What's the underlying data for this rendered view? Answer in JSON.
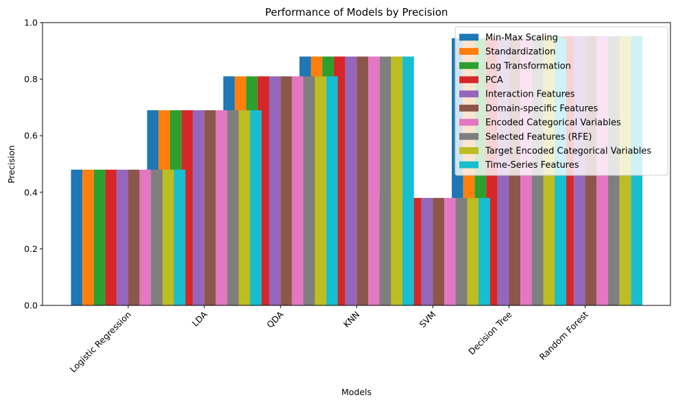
{
  "chart_data": {
    "type": "bar",
    "title": "Performance of Models by Precision",
    "xlabel": "Models",
    "ylabel": "Precision",
    "ylim": [
      0,
      1.0
    ],
    "yticks": [
      "0.0",
      "0.2",
      "0.4",
      "0.6",
      "0.8",
      "1.0"
    ],
    "categories": [
      "Logistic Regression",
      "LDA",
      "QDA",
      "KNN",
      "SVM",
      "Decision Tree",
      "Random Forest"
    ],
    "legend_position": "top-right",
    "grid": false,
    "series": [
      {
        "name": "Min-Max Scaling",
        "color": "#1f77b4",
        "values": [
          0.48,
          0.69,
          0.81,
          0.88,
          0.38,
          0.945,
          0.952
        ]
      },
      {
        "name": "Standardization",
        "color": "#ff7f0e",
        "values": [
          0.48,
          0.69,
          0.81,
          0.88,
          0.38,
          0.945,
          0.952
        ]
      },
      {
        "name": "Log Transformation",
        "color": "#2ca02c",
        "values": [
          0.48,
          0.69,
          0.81,
          0.88,
          0.38,
          0.945,
          0.952
        ]
      },
      {
        "name": "PCA",
        "color": "#d62728",
        "values": [
          0.48,
          0.69,
          0.81,
          0.88,
          0.38,
          0.945,
          0.952
        ]
      },
      {
        "name": "Interaction Features",
        "color": "#9467bd",
        "values": [
          0.48,
          0.69,
          0.81,
          0.88,
          0.38,
          0.945,
          0.952
        ]
      },
      {
        "name": "Domain-specific Features",
        "color": "#8c564b",
        "values": [
          0.48,
          0.69,
          0.81,
          0.88,
          0.38,
          0.945,
          0.952
        ]
      },
      {
        "name": "Encoded Categorical Variables",
        "color": "#e377c2",
        "values": [
          0.48,
          0.69,
          0.81,
          0.88,
          0.38,
          0.945,
          0.952
        ]
      },
      {
        "name": "Selected Features (RFE)",
        "color": "#7f7f7f",
        "values": [
          0.48,
          0.69,
          0.81,
          0.88,
          0.38,
          0.945,
          0.952
        ]
      },
      {
        "name": "Target Encoded Categorical Variables",
        "color": "#bcbd22",
        "values": [
          0.48,
          0.69,
          0.81,
          0.88,
          0.38,
          0.945,
          0.952
        ]
      },
      {
        "name": "Time-Series Features",
        "color": "#17becf",
        "values": [
          0.48,
          0.69,
          0.81,
          0.88,
          0.38,
          0.945,
          0.952
        ]
      }
    ]
  }
}
